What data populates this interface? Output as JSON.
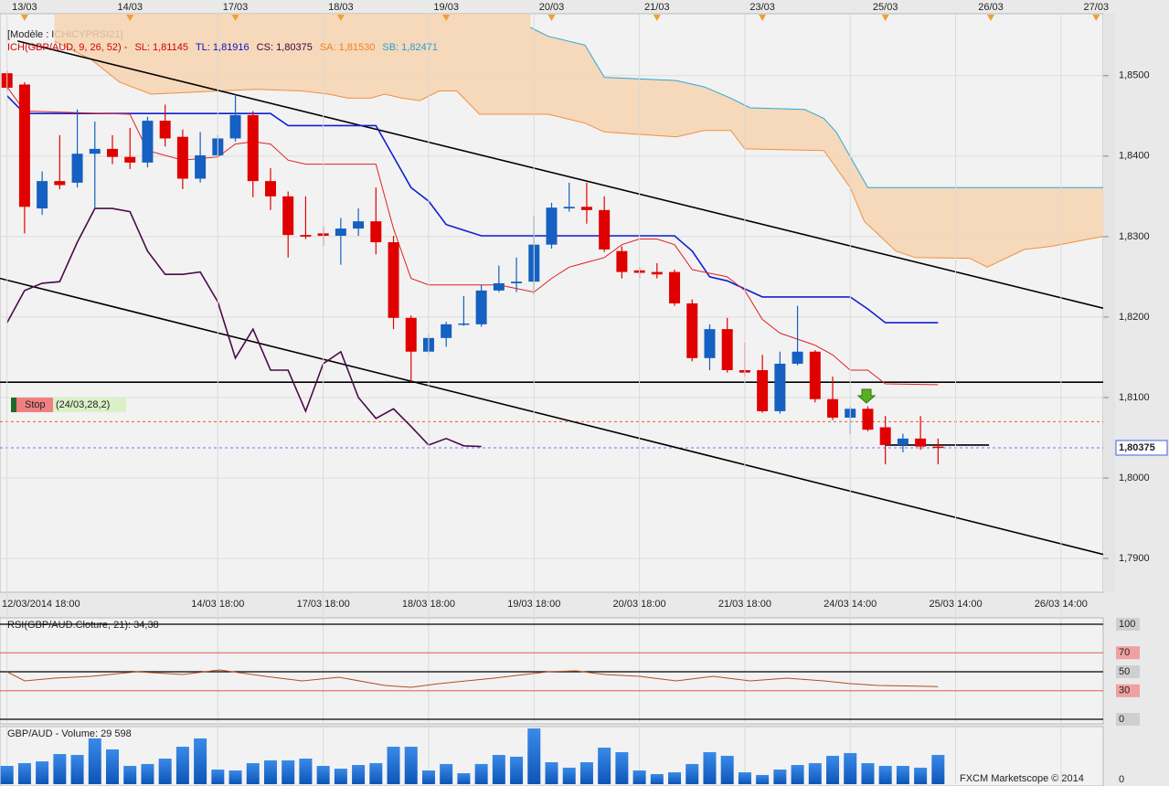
{
  "chart_data": [
    {
      "type": "candlestick",
      "title": "[Modèle : ICHICYPRSI21]",
      "legend": [
        {
          "text": "ICH(GBP/AUD, 9, 26, 52) -",
          "color": "#d00000"
        },
        {
          "text": "SL: 1,81145",
          "color": "#d00000"
        },
        {
          "text": "TL: 1,81916",
          "color": "#1010c0"
        },
        {
          "text": "CS: 1,80375",
          "color": "#400040"
        },
        {
          "text": "SA: 1,81530",
          "color": "#f08020"
        },
        {
          "text": "SB: 1,82471",
          "color": "#2aa0d0"
        }
      ],
      "xlim": [
        -0.4,
        62.4
      ],
      "ylim": [
        1.7858,
        1.8577
      ],
      "yticks": [
        {
          "value": 1.79,
          "label": "1,7900"
        },
        {
          "value": 1.8,
          "label": "1,8000"
        },
        {
          "value": 1.81,
          "label": "1,8100"
        },
        {
          "value": 1.82,
          "label": "1,8200"
        },
        {
          "value": 1.83,
          "label": "1,8300"
        },
        {
          "value": 1.84,
          "label": "1,8400"
        },
        {
          "value": 1.85,
          "label": "1,8500"
        }
      ],
      "top_xticks": [
        {
          "value": 1,
          "label": "13/03"
        },
        {
          "value": 7,
          "label": "14/03"
        },
        {
          "value": 13,
          "label": "17/03"
        },
        {
          "value": 19,
          "label": "18/03"
        },
        {
          "value": 25,
          "label": "19/03"
        },
        {
          "value": 31,
          "label": "20/03"
        },
        {
          "value": 37,
          "label": "21/03"
        },
        {
          "value": 43,
          "label": "23/03"
        },
        {
          "value": 50,
          "label": "25/03"
        },
        {
          "value": 56,
          "label": "26/03"
        },
        {
          "value": 62,
          "label": "27/03"
        }
      ],
      "xticks": [
        {
          "value": 0,
          "label": "12/03/2014 18:00"
        },
        {
          "value": 12,
          "label": "14/03 18:00"
        },
        {
          "value": 18,
          "label": "17/03 18:00"
        },
        {
          "value": 24,
          "label": "18/03 18:00"
        },
        {
          "value": 30,
          "label": "19/03 18:00"
        },
        {
          "value": 36,
          "label": "20/03 18:00"
        },
        {
          "value": 42,
          "label": "21/03 18:00"
        },
        {
          "value": 48,
          "label": "24/03 14:00"
        },
        {
          "value": 54,
          "label": "25/03 14:00"
        },
        {
          "value": 60,
          "label": "26/03 14:00"
        }
      ],
      "up_color": "#1560c0",
      "down_color": "#e00000",
      "open": [
        1.8503,
        1.8489,
        1.8335,
        1.8369,
        1.8367,
        1.8403,
        1.8409,
        1.8399,
        1.8392,
        1.8444,
        1.8424,
        1.8372,
        1.8401,
        1.8422,
        1.8451,
        1.8369,
        1.835,
        1.8302,
        1.8304,
        1.8301,
        1.831,
        1.8319,
        1.8293,
        1.8199,
        1.8157,
        1.8174,
        1.8191,
        1.8191,
        1.8233,
        1.8242,
        1.8244,
        1.829,
        1.8335,
        1.8337,
        1.8333,
        1.8282,
        1.8258,
        1.8256,
        1.8256,
        1.8217,
        1.8149,
        1.8185,
        1.8134,
        1.8134,
        1.8083,
        1.8142,
        1.8157,
        1.8098,
        1.8075,
        1.8086,
        1.8063,
        1.8041,
        1.8049,
        1.8039
      ],
      "high": [
        1.8506,
        1.8492,
        1.8381,
        1.8426,
        1.8458,
        1.8443,
        1.8426,
        1.8435,
        1.8449,
        1.8464,
        1.8433,
        1.843,
        1.8426,
        1.8477,
        1.8456,
        1.8385,
        1.8356,
        1.835,
        1.8313,
        1.8323,
        1.8335,
        1.8361,
        1.8301,
        1.8202,
        1.818,
        1.8194,
        1.8226,
        1.824,
        1.8264,
        1.8274,
        1.8326,
        1.8342,
        1.8367,
        1.8367,
        1.835,
        1.8288,
        1.8262,
        1.8267,
        1.8259,
        1.8222,
        1.8191,
        1.8199,
        1.8168,
        1.8153,
        1.8157,
        1.8214,
        1.8159,
        1.8126,
        1.8089,
        1.8089,
        1.8077,
        1.8055,
        1.8077,
        1.8049
      ],
      "low": [
        1.8481,
        1.8304,
        1.8327,
        1.8359,
        1.8361,
        1.8335,
        1.839,
        1.8384,
        1.8386,
        1.8412,
        1.8359,
        1.8367,
        1.8399,
        1.8418,
        1.8349,
        1.8333,
        1.8274,
        1.8297,
        1.8288,
        1.8265,
        1.8301,
        1.8278,
        1.8185,
        1.8119,
        1.8153,
        1.8163,
        1.8189,
        1.8188,
        1.8231,
        1.8231,
        1.8228,
        1.8285,
        1.8331,
        1.8316,
        1.8281,
        1.8248,
        1.8248,
        1.8248,
        1.8214,
        1.8145,
        1.8134,
        1.8131,
        1.8126,
        1.8081,
        1.808,
        1.814,
        1.8094,
        1.8072,
        1.8055,
        1.8058,
        1.8017,
        1.8032,
        1.8035,
        1.8017
      ],
      "close": [
        1.8485,
        1.8337,
        1.8369,
        1.8364,
        1.8403,
        1.8409,
        1.8399,
        1.8392,
        1.8444,
        1.8422,
        1.8372,
        1.8401,
        1.8422,
        1.8451,
        1.8369,
        1.835,
        1.8302,
        1.83,
        1.8301,
        1.831,
        1.8319,
        1.8293,
        1.8199,
        1.8157,
        1.8174,
        1.8191,
        1.8192,
        1.8233,
        1.8242,
        1.8244,
        1.829,
        1.8336,
        1.8337,
        1.8333,
        1.8284,
        1.8256,
        1.8255,
        1.8253,
        1.8217,
        1.8149,
        1.8185,
        1.8134,
        1.8131,
        1.8083,
        1.8142,
        1.8157,
        1.8098,
        1.8075,
        1.8086,
        1.806,
        1.8041,
        1.8049,
        1.8039,
        1.80375
      ],
      "cloud": {
        "color": "#f7d3b0",
        "a": {
          "color": "#f09040",
          "x": [
            2.7,
            4.8,
            6.4,
            8.2,
            12.1,
            14.2,
            16.8,
            18.3,
            19.4,
            20.7,
            21.5,
            22.5,
            23.5,
            24.6,
            25.6,
            26.9,
            30.8,
            32.9,
            34,
            38.1,
            39.7,
            41.2,
            42,
            46.5,
            48,
            48.8,
            50.6,
            51.7,
            54.8,
            55.8,
            57.9,
            59.5,
            61.6,
            62.4
          ],
          "values": [
            1.8543,
            1.852,
            1.8492,
            1.8477,
            1.8481,
            1.8483,
            1.8481,
            1.8477,
            1.8472,
            1.8472,
            1.8477,
            1.8472,
            1.8469,
            1.8481,
            1.8481,
            1.8452,
            1.8452,
            1.8441,
            1.843,
            1.8424,
            1.8432,
            1.8432,
            1.8409,
            1.8407,
            1.8361,
            1.8319,
            1.8282,
            1.8274,
            1.8273,
            1.8262,
            1.8284,
            1.8288,
            1.8297,
            1.83
          ]
        },
        "b": {
          "color": "#2aa8d8",
          "x": [
            29.8,
            30.8,
            32.9,
            34,
            38.1,
            39.7,
            41.2,
            42.3,
            45.4,
            46.5,
            47.2,
            49,
            62.4
          ],
          "values": [
            1.856,
            1.8549,
            1.8538,
            1.8498,
            1.8494,
            1.8486,
            1.8472,
            1.846,
            1.8458,
            1.8447,
            1.843,
            1.8361,
            1.8361
          ]
        }
      },
      "lines": [
        {
          "color": "#1020d0",
          "x": [
            0,
            1,
            15,
            16,
            21,
            23,
            24,
            25,
            27,
            38,
            39,
            40,
            41,
            43,
            48,
            49,
            50,
            53
          ],
          "values": [
            1.8475,
            1.8453,
            1.8453,
            1.8438,
            1.8438,
            1.8361,
            1.8344,
            1.8315,
            1.8301,
            1.8301,
            1.8282,
            1.825,
            1.8245,
            1.8225,
            1.8225,
            1.821,
            1.8193,
            1.8193
          ]
        },
        {
          "color": "#e02020",
          "x": [
            0,
            1,
            7,
            8,
            10,
            12,
            13,
            14,
            15,
            16,
            17,
            21,
            22,
            23,
            24,
            28,
            30,
            31,
            32,
            34,
            35,
            36,
            37,
            38,
            39,
            41,
            42,
            43,
            44,
            46,
            47,
            48,
            49,
            50,
            53
          ],
          "values": [
            1.8486,
            1.8456,
            1.8452,
            1.8407,
            1.8395,
            1.8399,
            1.8415,
            1.8418,
            1.8415,
            1.8395,
            1.839,
            1.839,
            1.831,
            1.8248,
            1.824,
            1.824,
            1.8231,
            1.8248,
            1.8262,
            1.8274,
            1.829,
            1.8297,
            1.8297,
            1.829,
            1.8259,
            1.825,
            1.8233,
            1.8197,
            1.818,
            1.8165,
            1.8153,
            1.8134,
            1.8134,
            1.8117,
            1.8116
          ]
        },
        {
          "color": "#4a0a4a",
          "x": [
            0,
            1,
            2,
            3,
            4,
            5,
            6,
            7,
            8,
            9,
            10,
            11,
            12,
            13,
            14,
            15,
            16,
            17,
            18,
            19,
            20,
            21,
            22,
            23,
            24,
            25,
            26,
            27
          ],
          "values": [
            1.8193,
            1.8233,
            1.8242,
            1.8244,
            1.8293,
            1.8335,
            1.8335,
            1.8331,
            1.8282,
            1.8253,
            1.8253,
            1.8256,
            1.8219,
            1.8149,
            1.8185,
            1.8134,
            1.8134,
            1.8083,
            1.8142,
            1.8157,
            1.81,
            1.8074,
            1.8086,
            1.8064,
            1.8041,
            1.8049,
            1.804,
            1.8039
          ]
        }
      ],
      "trend_lines": [
        {
          "x": [
            0.6,
            62.4
          ],
          "values": [
            1.8543,
            1.8211
          ]
        },
        {
          "x": [
            -0.4,
            62.4
          ],
          "values": [
            1.8248,
            1.7905
          ]
        },
        {
          "x": [
            -0.4,
            62.4
          ],
          "values": [
            1.8119,
            1.8119
          ]
        },
        {
          "x": [
            50,
            55.9
          ],
          "values": [
            1.8041,
            1.8041
          ]
        }
      ],
      "levels": [
        {
          "value": 1.807,
          "color": "#e06020"
        },
        {
          "value": 1.80375,
          "color": "#7070ff"
        }
      ],
      "last_price": {
        "value": 1.80375,
        "label": "1,80375"
      },
      "stop": {
        "label": "Stop",
        "detail": "(24/03,28,2)"
      }
    },
    {
      "type": "line",
      "title": "RSI(GBP/AUD.Cloture, 21): 34,38",
      "color": "#b05020",
      "xlim": [
        -0.4,
        62.4
      ],
      "ylim": [
        0,
        100
      ],
      "yticks": [
        100,
        70,
        50,
        30,
        0
      ],
      "tick_colors": [
        "#000000",
        "#e04040",
        "#000000",
        "#e04040",
        "#000000"
      ],
      "x": [
        0,
        1,
        2.7,
        4.8,
        7.4,
        10,
        12.1,
        14.7,
        16.8,
        18.9,
        21.5,
        23,
        24.6,
        27.7,
        30.8,
        32.4,
        34,
        36,
        38.1,
        40.2,
        42.3,
        44.4,
        46.5,
        48,
        49.6,
        53
      ],
      "values": [
        50,
        40.4,
        43.3,
        45.2,
        50,
        47.1,
        51.9,
        45.2,
        40.4,
        44.2,
        35.6,
        33.7,
        37.5,
        43.3,
        50,
        51,
        47.1,
        45.2,
        40.4,
        45.2,
        40.4,
        43.3,
        40.4,
        37.5,
        35.6,
        34.38
      ]
    },
    {
      "type": "bar",
      "title": "GBP/AUD - Volume: 29 598",
      "color": "#1e6fd0",
      "xlim": [
        -0.4,
        62.4
      ],
      "ylim": [
        0,
        58300
      ],
      "yticks": [
        0
      ],
      "values": [
        18500,
        21300,
        23100,
        30500,
        29600,
        46300,
        35200,
        18500,
        20400,
        25900,
        37900,
        46300,
        14800,
        13900,
        21300,
        24100,
        24100,
        25900,
        18500,
        15700,
        19400,
        21300,
        37900,
        37900,
        13900,
        20400,
        11100,
        20400,
        29600,
        27800,
        56400,
        22200,
        16700,
        22200,
        37000,
        32400,
        13900,
        10200,
        12000,
        20400,
        32400,
        28700,
        12000,
        9300,
        14800,
        19400,
        21300,
        28700,
        31500,
        21300,
        18500,
        18500,
        16700,
        29598
      ]
    }
  ],
  "footer": "FXCM Marketscope © 2014"
}
